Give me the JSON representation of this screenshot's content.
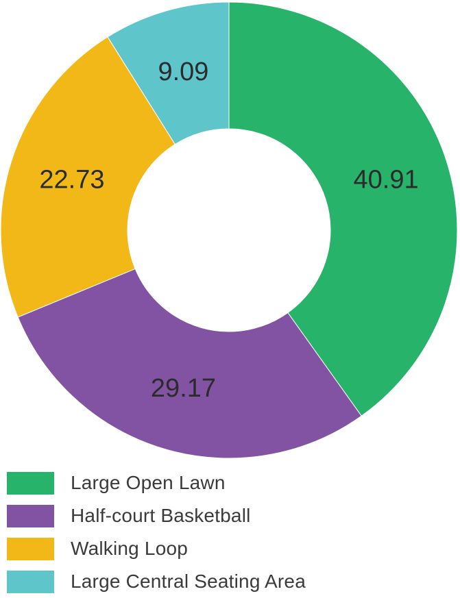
{
  "chart_data": {
    "type": "pie",
    "variant": "donut",
    "categories": [
      "Large Open Lawn",
      "Half-court Basketball",
      "Walking Loop",
      "Large Central Seating Area"
    ],
    "values": [
      40.91,
      29.17,
      22.73,
      9.09
    ],
    "value_labels": [
      "40.91",
      "29.17",
      "22.73",
      "9.09"
    ],
    "colors": [
      "#27b36a",
      "#8253a3",
      "#f2b817",
      "#5ec6cb"
    ],
    "start": "top",
    "direction": "clockwise",
    "legend_position": "bottom-left"
  }
}
